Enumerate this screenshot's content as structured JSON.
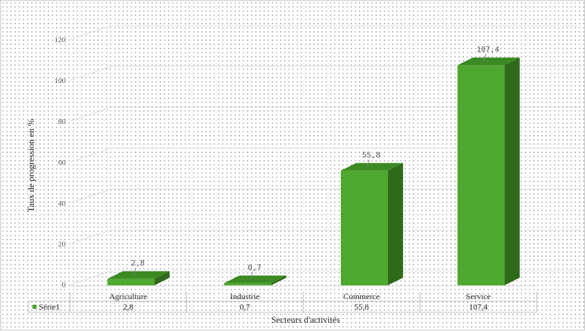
{
  "chart_data": {
    "type": "bar",
    "categories": [
      "Agriculture",
      "Industrie",
      "Commerce",
      "Service"
    ],
    "series": [
      {
        "name": "Série1",
        "values": [
          2.8,
          0.7,
          55.8,
          107.4
        ]
      }
    ],
    "data_labels": [
      "2,8",
      "0,7",
      "55,8",
      "107,4"
    ],
    "table_values": [
      "2,8",
      "0,7",
      "55,8",
      "107,4"
    ],
    "xlabel": "Secteurs d'activités",
    "ylabel": "Taux de progression en %",
    "ylim": [
      0,
      120
    ],
    "yticks": [
      0,
      20,
      40,
      60,
      80,
      100,
      120
    ],
    "grid": true,
    "legend": "data-table-left",
    "colors": {
      "front": "#4ea72e",
      "side": "#2f6a1b",
      "top": "#3b8a22"
    }
  }
}
